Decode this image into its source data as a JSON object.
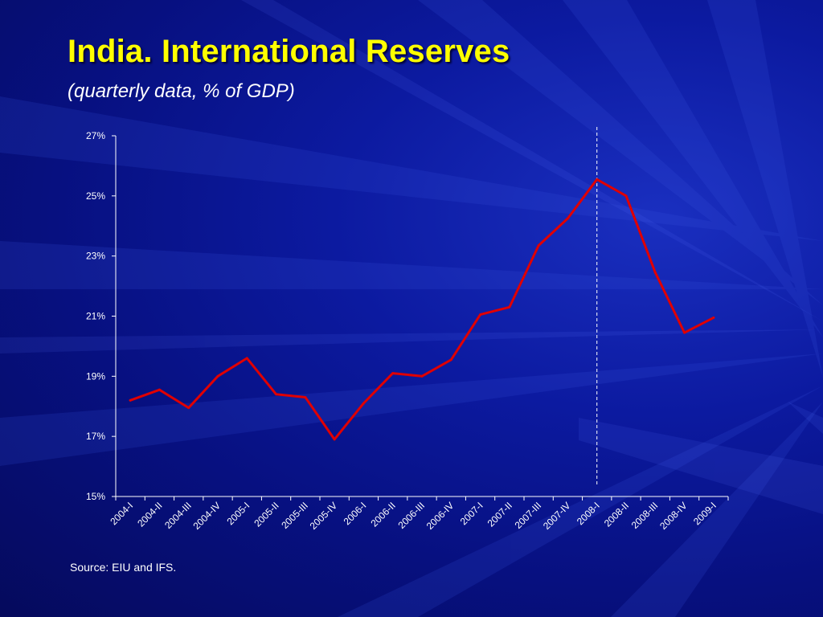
{
  "slide": {
    "title": "India.  International Reserves",
    "subtitle": "(quarterly data, % of GDP)",
    "source": "Source: EIU and IFS."
  },
  "colors": {
    "line": "#e00000",
    "axis": "#ffffff",
    "marker_line": "#ffffff",
    "title": "#ffff00"
  },
  "chart_data": {
    "type": "line",
    "title": "",
    "xlabel": "",
    "ylabel": "",
    "categories": [
      "2004-I",
      "2004-II",
      "2004-III",
      "2004-IV",
      "2005-I",
      "2005-II",
      "2005-III",
      "2005-IV",
      "2006-I",
      "2006-II",
      "2006-III",
      "2006-IV",
      "2007-I",
      "2007-II",
      "2007-III",
      "2007-IV",
      "2008-I",
      "2008-II",
      "2008-III",
      "2008-IV",
      "2009-I"
    ],
    "series": [
      {
        "values": [
          18.2,
          18.55,
          17.95,
          19.0,
          19.6,
          18.4,
          18.3,
          16.9,
          18.1,
          19.1,
          19.0,
          19.55,
          21.05,
          21.3,
          23.35,
          24.25,
          25.55,
          25.0,
          22.45,
          20.45,
          20.95
        ]
      }
    ],
    "ylim": [
      15,
      27
    ],
    "yticks": [
      15,
      17,
      19,
      21,
      23,
      25,
      27
    ],
    "ytick_labels": [
      "15%",
      "17%",
      "19%",
      "21%",
      "23%",
      "25%",
      "27%"
    ],
    "vertical_marker": {
      "category": "2008-I",
      "style": "dashed"
    },
    "grid": false,
    "legend": "none"
  }
}
